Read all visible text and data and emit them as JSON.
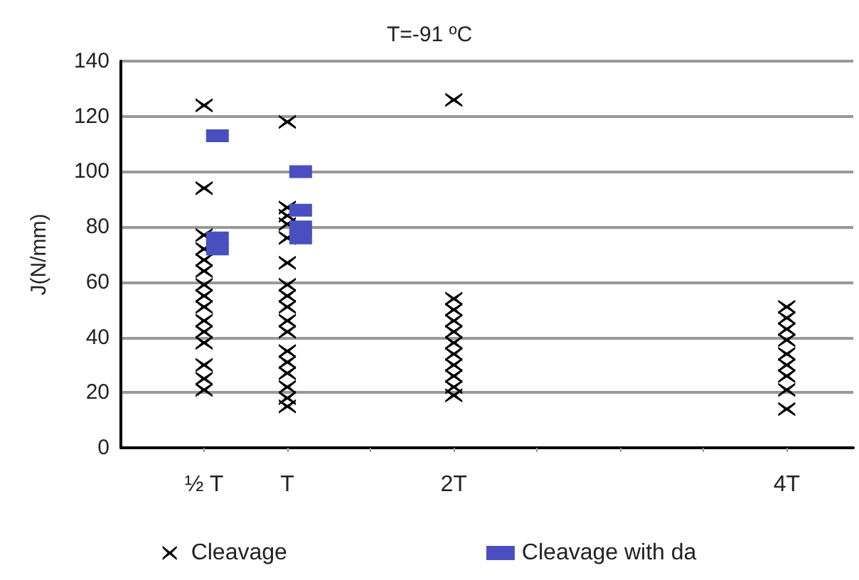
{
  "chart_data": {
    "type": "scatter",
    "title": "T=-91 ºC",
    "ylabel": "J(N/mm)",
    "xlim": [
      0,
      4.4
    ],
    "xticks": [
      {
        "value": 0.5,
        "label": "½ T"
      },
      {
        "value": 1,
        "label": "T"
      },
      {
        "value": 1.5,
        "label": null
      },
      {
        "value": 2,
        "label": "2T"
      },
      {
        "value": 2.5,
        "label": null
      },
      {
        "value": 3,
        "label": null
      },
      {
        "value": 3.5,
        "label": null
      },
      {
        "value": 4,
        "label": "4T"
      }
    ],
    "ylim": [
      0,
      140
    ],
    "yticks": [
      0,
      20,
      40,
      60,
      80,
      100,
      120,
      140
    ],
    "grid": "y",
    "legend": "bottom",
    "series": [
      {
        "name": "Cleavage",
        "color": "#000000",
        "marker": "cross",
        "x": [
          0.5,
          0.5,
          0.5,
          0.5,
          0.5,
          0.5,
          0.5,
          0.5,
          0.5,
          0.5,
          0.5,
          0.5,
          0.5,
          0.5,
          0.5,
          1,
          1,
          1,
          1,
          1,
          1,
          1,
          1,
          1,
          1,
          1,
          1,
          1,
          1,
          1,
          1,
          1,
          2,
          2,
          2,
          2,
          2,
          2,
          2,
          2,
          2,
          2,
          2,
          4,
          4,
          4,
          4,
          4,
          4,
          4,
          4,
          4
        ],
        "values": [
          124,
          94,
          77,
          72,
          68,
          64,
          59,
          55,
          51,
          46,
          42,
          38,
          30,
          25,
          21,
          118,
          87,
          84,
          81,
          76,
          67,
          59,
          55,
          51,
          46,
          42,
          35,
          31,
          27,
          22,
          18,
          15,
          126,
          54,
          50,
          46,
          42,
          38,
          34,
          30,
          26,
          22,
          19,
          51,
          47,
          43,
          39,
          34,
          30,
          26,
          21,
          14
        ]
      },
      {
        "name": "Cleavage with da",
        "color": "#4a4fbf",
        "marker": "square",
        "x": [
          0.58,
          0.58,
          0.58,
          1.08,
          1.08,
          1.08,
          1.08
        ],
        "values": [
          113,
          76,
          72,
          100,
          86,
          80,
          76
        ]
      }
    ]
  }
}
